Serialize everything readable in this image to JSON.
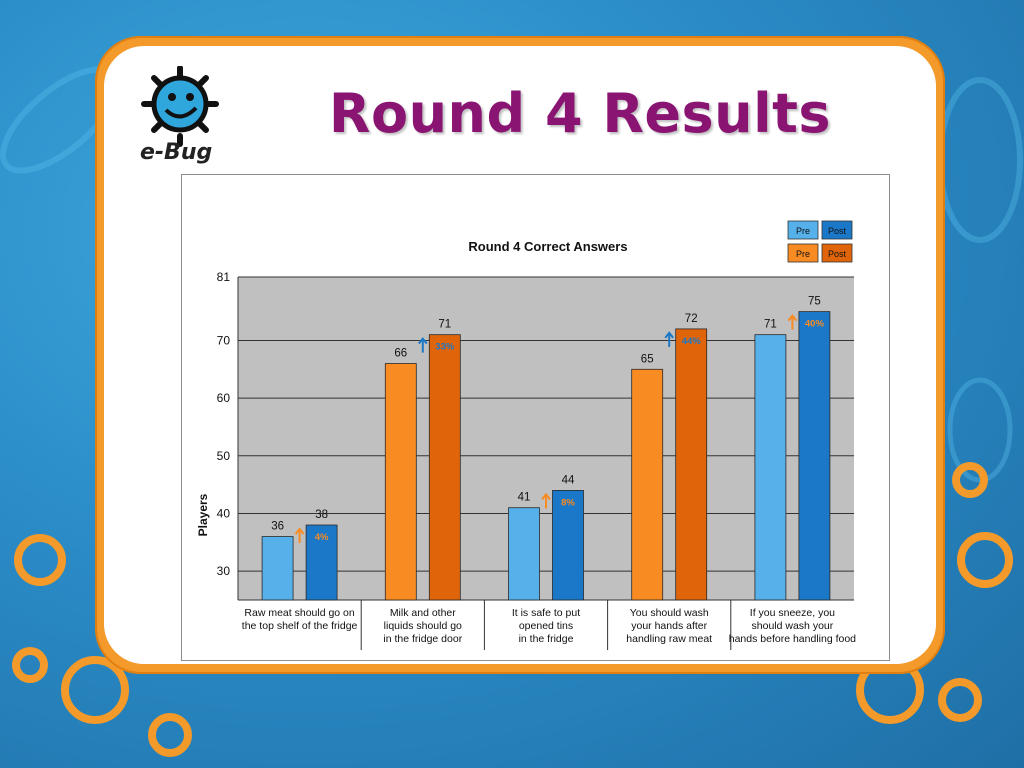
{
  "slide": {
    "title": "Round 4 Results",
    "logo_text": "e-Bug"
  },
  "legend": {
    "row1": [
      "Pre",
      "Post"
    ],
    "row2": [
      "Pre",
      "Post"
    ]
  },
  "colors": {
    "blue_pre": "#56b0ea",
    "blue_post": "#1b77c7",
    "orange_pre": "#f88b22",
    "orange_post": "#e0650a",
    "plot_bg": "#c0c0c0",
    "title_color": "#8a1472",
    "frame_orange": "#f39a2a"
  },
  "chart_data": {
    "type": "bar",
    "title": "Round 4 Correct Answers",
    "ylabel": "Players",
    "xlabel": "",
    "ylim": [
      25,
      81
    ],
    "yticks": [
      30,
      40,
      50,
      60,
      70,
      81
    ],
    "grid": true,
    "legend_position": "top-right",
    "categories": [
      [
        "Raw meat should go on",
        "the top shelf of the fridge"
      ],
      [
        "Milk and other",
        "liquids should go",
        "in the fridge door"
      ],
      [
        "It is safe to put",
        "opened tins",
        "in the fridge"
      ],
      [
        "You should wash",
        "your hands after",
        "handling raw meat"
      ],
      [
        "If you sneeze, you",
        "should wash your",
        "hands before handling food"
      ]
    ],
    "series": [
      {
        "name": "Pre",
        "values": [
          36,
          66,
          41,
          65,
          71
        ]
      },
      {
        "name": "Post",
        "values": [
          38,
          71,
          44,
          72,
          75
        ]
      }
    ],
    "bar_color_group": [
      "blue",
      "orange",
      "blue",
      "orange",
      "blue"
    ],
    "arrow_color_group": [
      "orange",
      "blue",
      "orange",
      "blue",
      "orange"
    ],
    "improvements": [
      "4%",
      "33%",
      "8%",
      "44%",
      "40%"
    ]
  }
}
